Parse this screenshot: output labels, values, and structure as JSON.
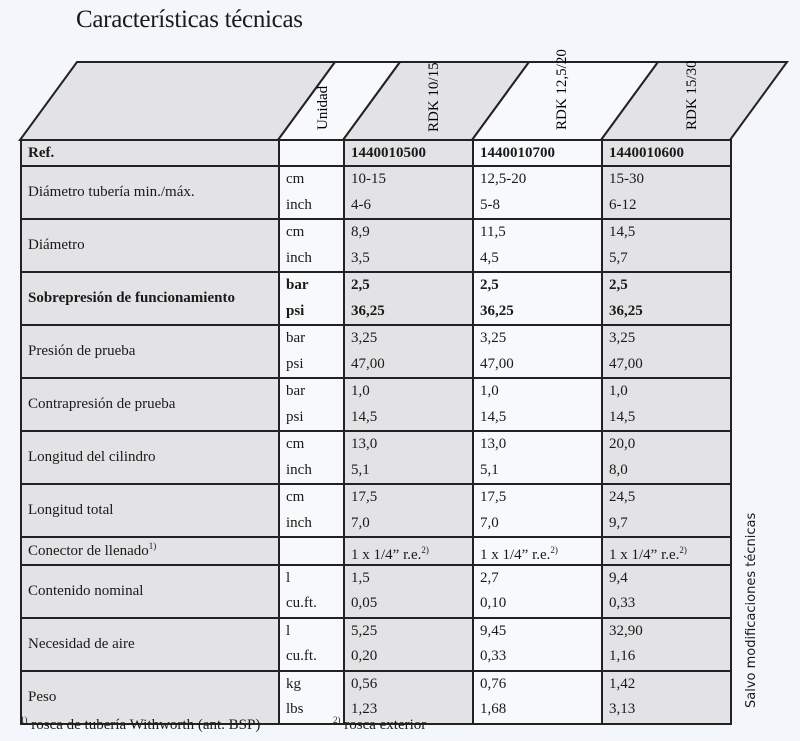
{
  "title": "Características técnicas",
  "header": {
    "unit": "Unidad",
    "models": [
      "RDK 10/15",
      "RDK 12,5/20",
      "RDK 15/30"
    ]
  },
  "ref": {
    "label": "Ref.",
    "values": [
      "1440010500",
      "1440010700",
      "1440010600"
    ]
  },
  "rows": [
    {
      "label": "Diámetro tubería min./máx.",
      "sup": "",
      "bold": false,
      "units": [
        "cm",
        "inch"
      ],
      "values": [
        [
          "10-15",
          "4-6"
        ],
        [
          "12,5-20",
          "5-8"
        ],
        [
          "15-30",
          "6-12"
        ]
      ]
    },
    {
      "label": "Diámetro",
      "sup": "",
      "bold": false,
      "units": [
        "cm",
        "inch"
      ],
      "values": [
        [
          "8,9",
          "3,5"
        ],
        [
          "11,5",
          "4,5"
        ],
        [
          "14,5",
          "5,7"
        ]
      ]
    },
    {
      "label": "Sobrepresión de funcionamiento",
      "sup": "",
      "bold": true,
      "units": [
        "bar",
        "psi"
      ],
      "values": [
        [
          "2,5",
          "36,25"
        ],
        [
          "2,5",
          "36,25"
        ],
        [
          "2,5",
          "36,25"
        ]
      ]
    },
    {
      "label": "Presión de prueba",
      "sup": "",
      "bold": false,
      "units": [
        "bar",
        "psi"
      ],
      "values": [
        [
          "3,25",
          "47,00"
        ],
        [
          "3,25",
          "47,00"
        ],
        [
          "3,25",
          "47,00"
        ]
      ]
    },
    {
      "label": "Contrapresión de prueba",
      "sup": "",
      "bold": false,
      "units": [
        "bar",
        "psi"
      ],
      "values": [
        [
          "1,0",
          "14,5"
        ],
        [
          "1,0",
          "14,5"
        ],
        [
          "1,0",
          "14,5"
        ]
      ]
    },
    {
      "label": "Longitud del cilindro",
      "sup": "",
      "bold": false,
      "units": [
        "cm",
        "inch"
      ],
      "values": [
        [
          "13,0",
          "5,1"
        ],
        [
          "13,0",
          "5,1"
        ],
        [
          "20,0",
          "8,0"
        ]
      ]
    },
    {
      "label": "Longitud total",
      "sup": "",
      "bold": false,
      "units": [
        "cm",
        "inch"
      ],
      "values": [
        [
          "17,5",
          "7,0"
        ],
        [
          "17,5",
          "7,0"
        ],
        [
          "24,5",
          "9,7"
        ]
      ]
    },
    {
      "label": "Conector de llenado",
      "sup": "1)",
      "bold": false,
      "units": [
        ""
      ],
      "values": [
        [
          "1 x 1/4” r.e."
        ],
        [
          "1 x 1/4” r.e."
        ],
        [
          "1 x 1/4” r.e."
        ]
      ],
      "value_sup": "2)"
    },
    {
      "label": "Contenido nominal",
      "sup": "",
      "bold": false,
      "units": [
        "l",
        "cu.ft."
      ],
      "values": [
        [
          "1,5",
          "0,05"
        ],
        [
          "2,7",
          "0,10"
        ],
        [
          "9,4",
          "0,33"
        ]
      ]
    },
    {
      "label": "Necesidad de aire",
      "sup": "",
      "bold": false,
      "units": [
        "l",
        "cu.ft."
      ],
      "values": [
        [
          "5,25",
          "0,20"
        ],
        [
          "9,45",
          "0,33"
        ],
        [
          "32,90",
          "1,16"
        ]
      ]
    },
    {
      "label": "Peso",
      "sup": "",
      "bold": false,
      "units": [
        "kg",
        "lbs"
      ],
      "values": [
        [
          "0,56",
          "1,23"
        ],
        [
          "0,76",
          "1,68"
        ],
        [
          "1,42",
          "3,13"
        ]
      ]
    }
  ],
  "footnotes": [
    {
      "mark": "1)",
      "text": " rosca de tubería Withworth (ant. BSP)"
    },
    {
      "mark": "2)",
      "text": " rosca exterior"
    }
  ],
  "side_note": "Salvo modificaciones técnicas"
}
